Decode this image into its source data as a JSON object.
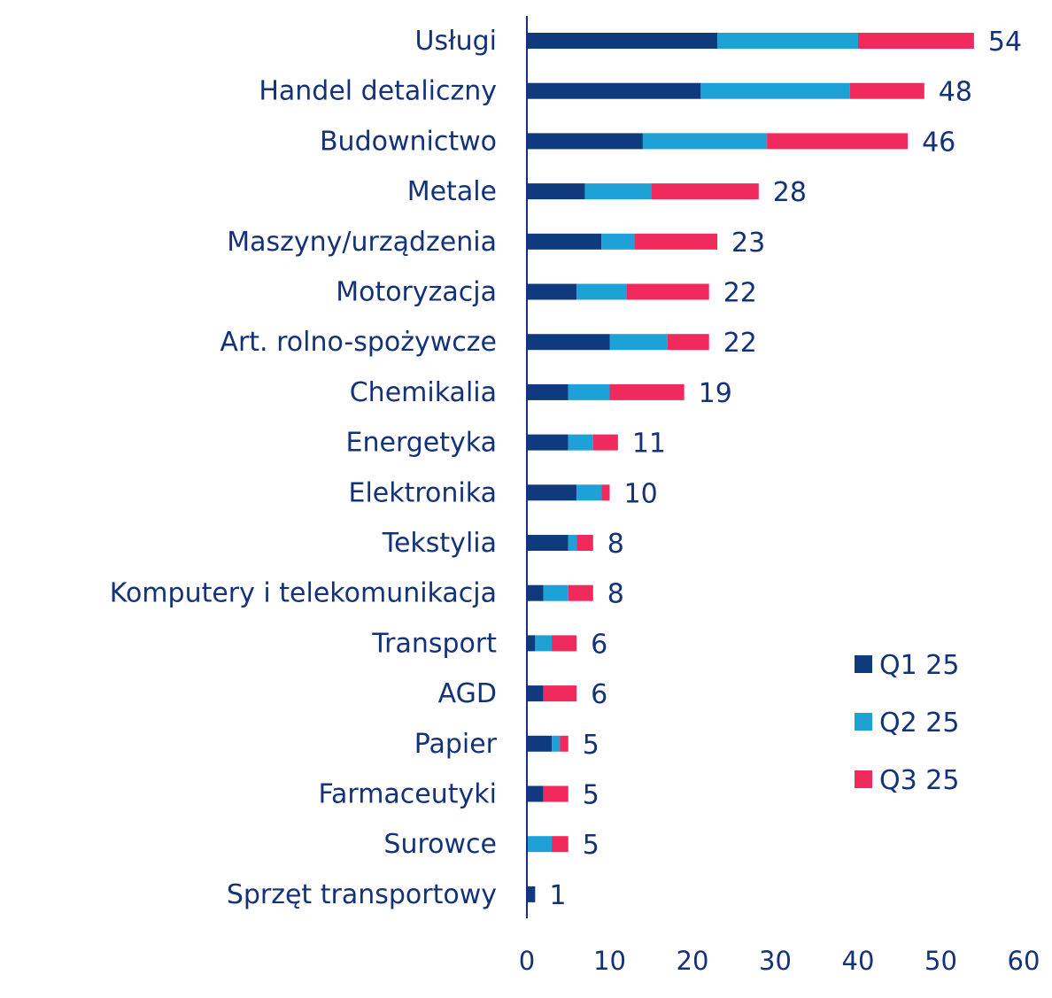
{
  "chart_data": {
    "type": "bar",
    "orientation": "horizontal",
    "stacked": true,
    "title": "",
    "xlabel": "",
    "ylabel": "",
    "xlim": [
      0,
      60
    ],
    "xticks": [
      0,
      10,
      20,
      30,
      40,
      50,
      60
    ],
    "grid": false,
    "legend_position": "bottom-right",
    "categories": [
      "Usługi",
      "Handel detaliczny",
      "Budownictwo",
      "Metale",
      "Maszyny/urządzenia",
      "Motoryzacja",
      "Art. rolno-spożywcze",
      "Chemikalia",
      "Energetyka",
      "Elektronika",
      "Tekstylia",
      "Komputery i telekomunikacja",
      "Transport",
      "AGD",
      "Papier",
      "Farmaceutyki",
      "Surowce",
      "Sprzęt transportowy"
    ],
    "series": [
      {
        "name": "Q1 25",
        "color": "#0f3a7e",
        "values": [
          23,
          21,
          14,
          7,
          9,
          6,
          10,
          5,
          5,
          6,
          5,
          2,
          1,
          2,
          3,
          2,
          0,
          1
        ]
      },
      {
        "name": "Q2 25",
        "color": "#1da1d6",
        "values": [
          17,
          18,
          15,
          8,
          4,
          6,
          7,
          5,
          3,
          3,
          1,
          3,
          2,
          0,
          1,
          0,
          3,
          0
        ]
      },
      {
        "name": "Q3 25",
        "color": "#f02a5c",
        "values": [
          14,
          9,
          17,
          13,
          10,
          10,
          5,
          9,
          3,
          1,
          2,
          3,
          3,
          4,
          1,
          3,
          2,
          0
        ]
      }
    ],
    "totals": [
      54,
      48,
      46,
      28,
      23,
      22,
      22,
      19,
      11,
      10,
      8,
      8,
      6,
      6,
      5,
      5,
      5,
      1
    ]
  }
}
